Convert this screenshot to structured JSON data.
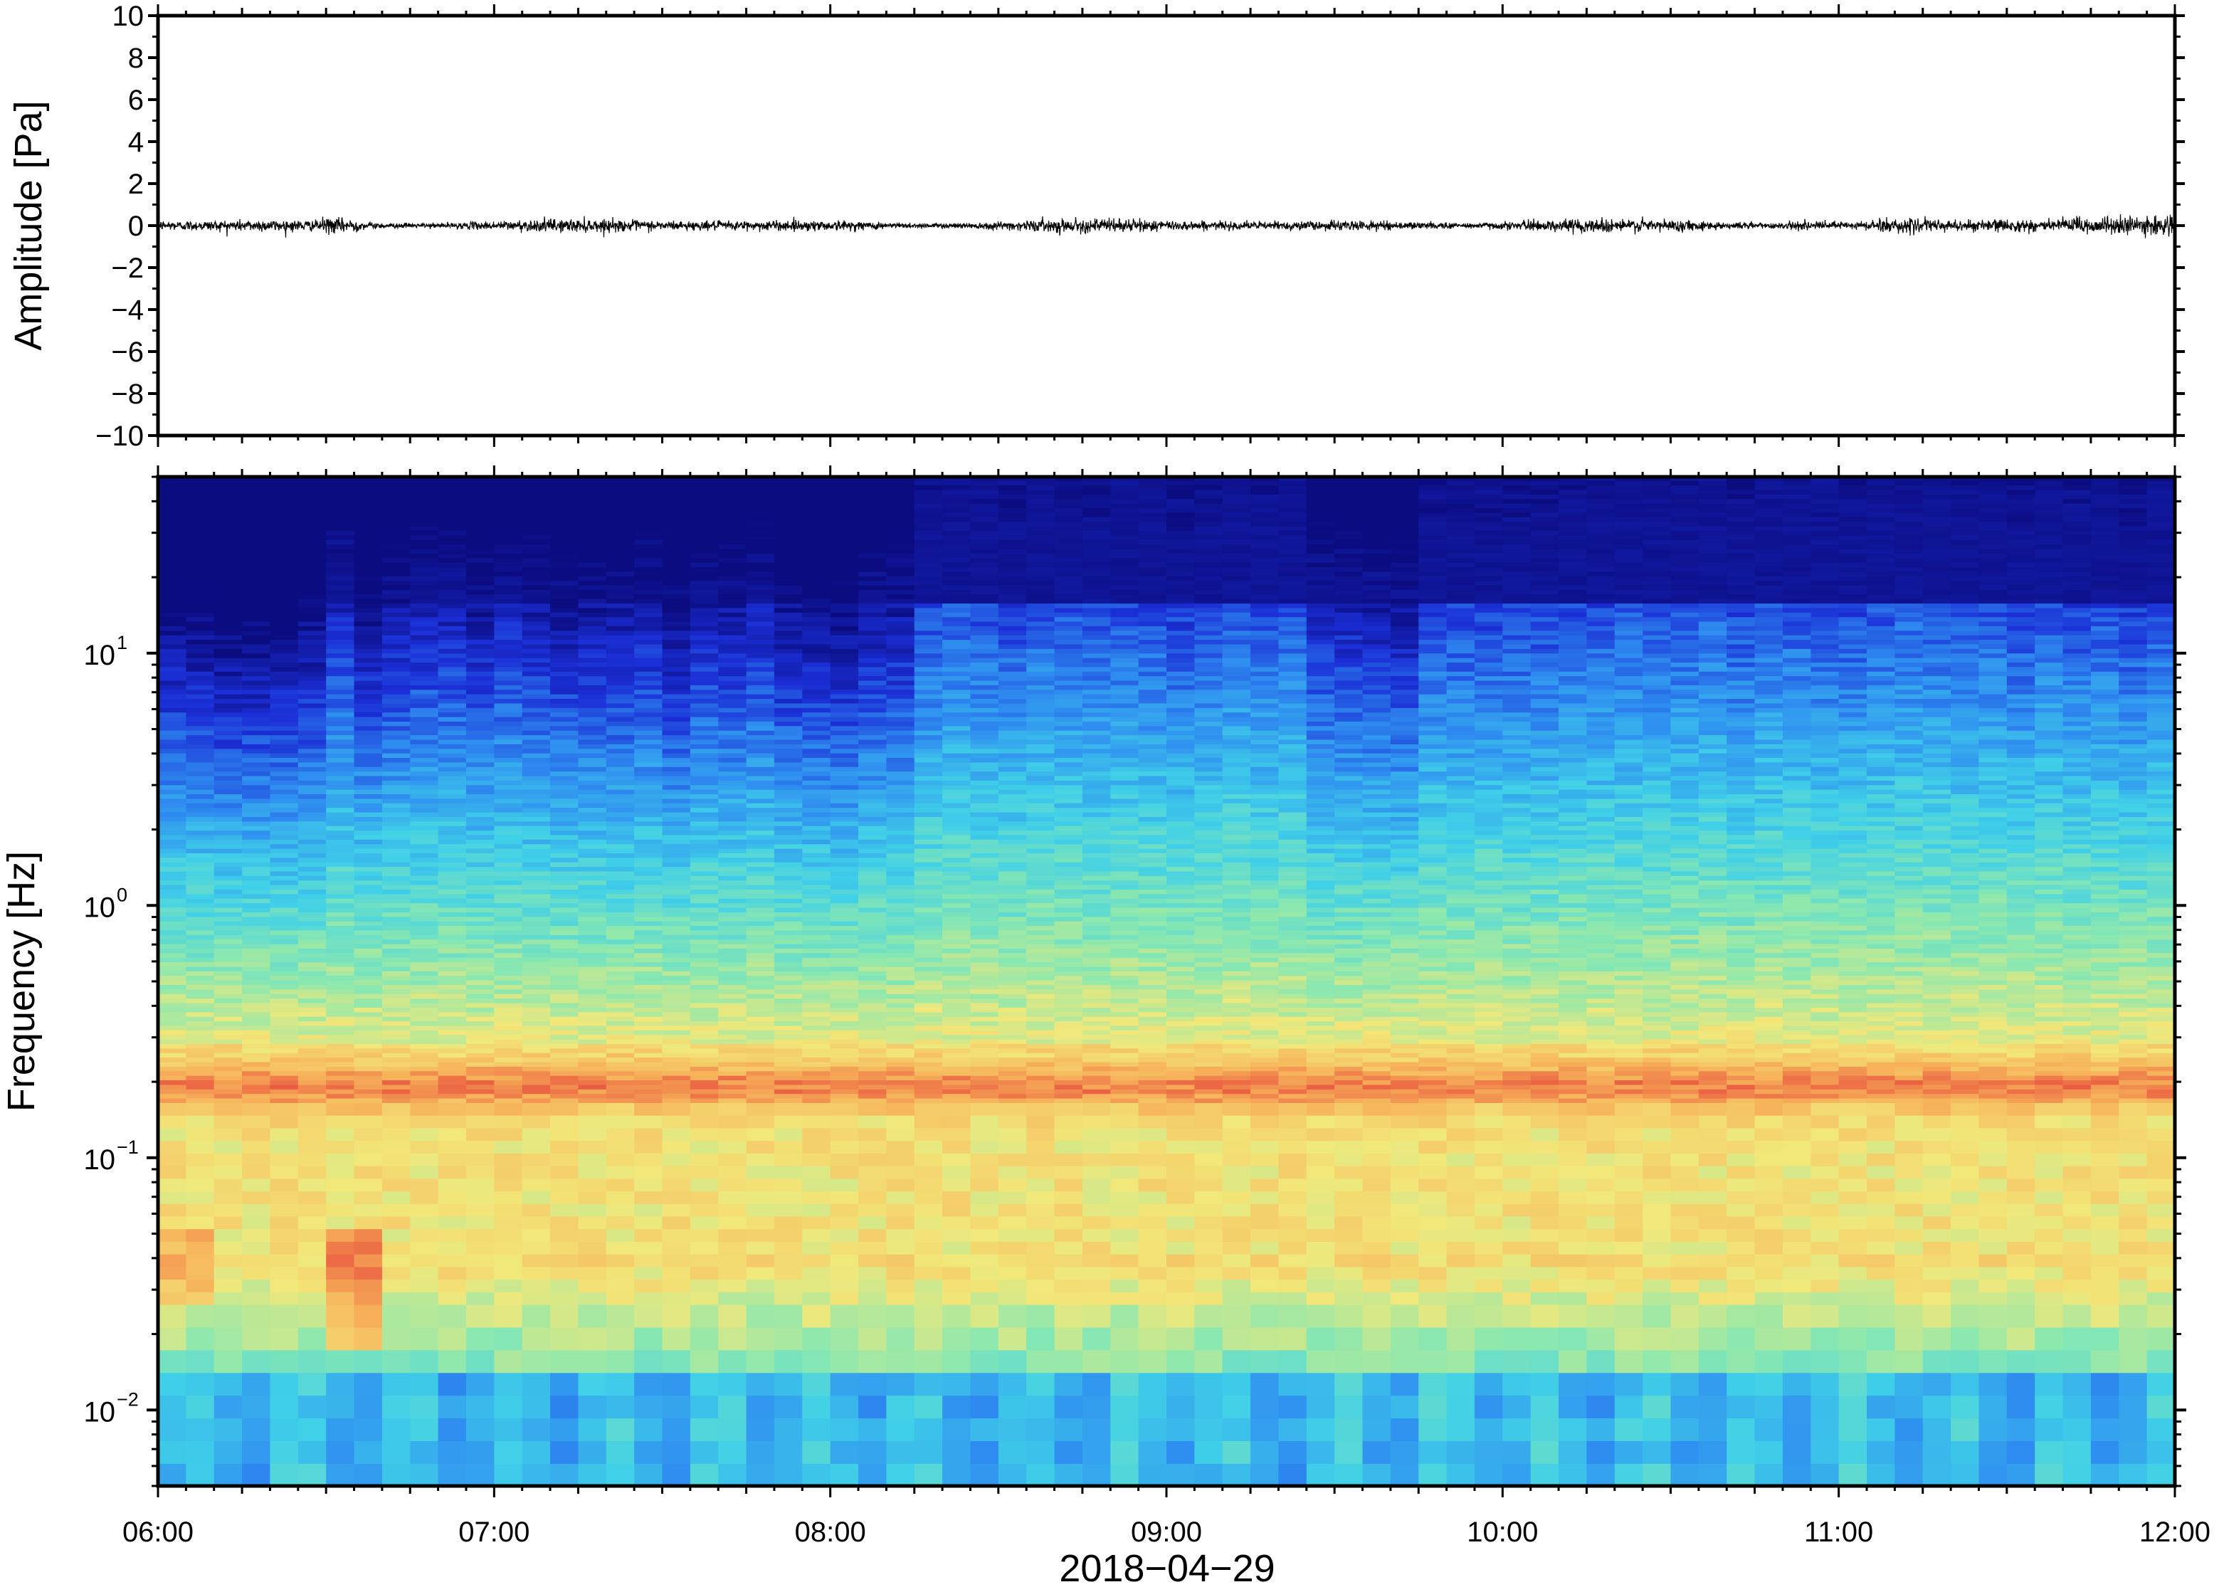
{
  "chart_data": [
    {
      "type": "line",
      "panel": "waveform",
      "ylabel": "Amplitude [Pa]",
      "xlabel": "",
      "xlim": [
        "06:00",
        "12:00"
      ],
      "ylim": [
        -10,
        10
      ],
      "yticks": [
        10,
        8,
        6,
        4,
        2,
        0,
        -2,
        -4,
        -6,
        -8,
        -10
      ],
      "ytick_labels": [
        "10",
        "8",
        "6",
        "4",
        "2",
        "0",
        "−2",
        "−4",
        "−6",
        "−8",
        "−10"
      ],
      "signal": {
        "description_of_shape": "noise",
        "typical_amplitude_pa": 0.25,
        "max_amplitude_pa": 0.6
      },
      "line_color": "#000000",
      "grid": false
    },
    {
      "type": "heatmap",
      "panel": "spectrogram",
      "ylabel": "Frequency [Hz]",
      "xlabel": "2018−04−29",
      "x_ticks": [
        "06:00",
        "07:00",
        "08:00",
        "09:00",
        "10:00",
        "11:00",
        "12:00"
      ],
      "xlim": [
        "06:00",
        "12:00"
      ],
      "ylim": [
        0.005,
        50
      ],
      "y_scale": "log",
      "y_ticks": [
        {
          "base": "10",
          "exp": "1",
          "value": 10
        },
        {
          "base": "10",
          "exp": "0",
          "value": 1
        },
        {
          "base": "10",
          "exp": "−1",
          "value": 0.1
        },
        {
          "base": "10",
          "exp": "−2",
          "value": 0.01
        }
      ],
      "colormap": [
        "#0b0c80",
        "#1b2fd6",
        "#2f8ef0",
        "#40d0e8",
        "#8ae8b0",
        "#f2e87a",
        "#f7b35a",
        "#e8503e"
      ],
      "features": {
        "microbarom_band_hz": 0.2,
        "quiet_interval": [
          "06:00",
          "08:15"
        ],
        "active_interval": [
          "08:15",
          "12:00"
        ]
      },
      "grid": false
    }
  ]
}
